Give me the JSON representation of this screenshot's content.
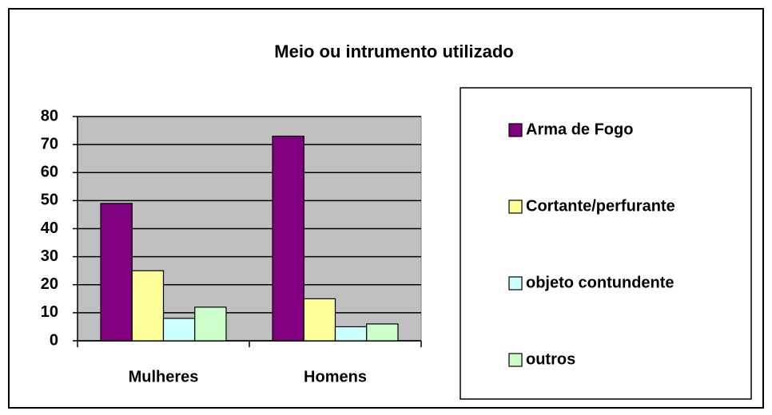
{
  "chart_data": {
    "type": "bar",
    "title": "Meio ou intrumento utilizado",
    "categories": [
      "Mulheres",
      "Homens"
    ],
    "series": [
      {
        "name": "Arma de Fogo",
        "color": "#800080",
        "values": [
          49,
          73
        ]
      },
      {
        "name": "Cortante/perfurante",
        "color": "#ffff99",
        "values": [
          25,
          15
        ]
      },
      {
        "name": "objeto contundente",
        "color": "#ccffff",
        "values": [
          8,
          5
        ]
      },
      {
        "name": "outros",
        "color": "#ccffcc",
        "values": [
          12,
          6
        ]
      }
    ],
    "ylim": [
      0,
      80
    ],
    "yticks": [
      0,
      10,
      20,
      30,
      40,
      50,
      60,
      70,
      80
    ],
    "grid": true,
    "plot_background": "#c0c0c0",
    "legend": "right"
  }
}
